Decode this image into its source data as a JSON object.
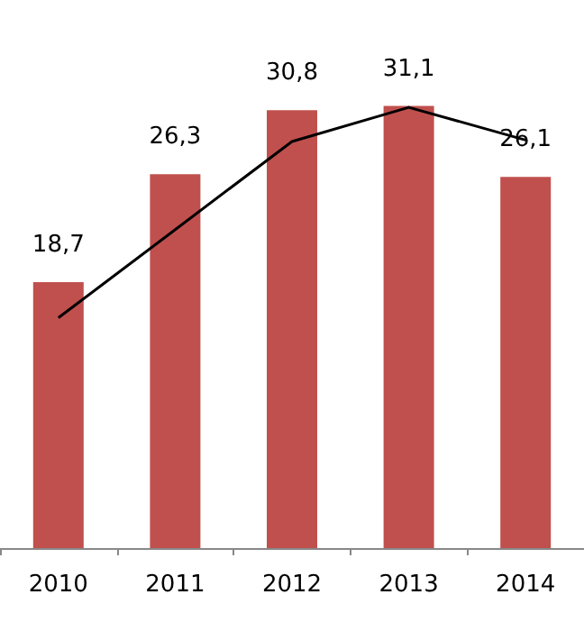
{
  "chart_data": {
    "type": "bar",
    "categories": [
      "2010",
      "2011",
      "2012",
      "2013",
      "2014"
    ],
    "series": [
      {
        "color": "#c0504d",
        "values": [
          18.7,
          26.3,
          30.8,
          31.1,
          26.1
        ],
        "value_labels": [
          "18,7",
          "26,3",
          "30,8",
          "31,1",
          "26,1"
        ]
      },
      {
        "type": "line",
        "color": "#000000",
        "values": [
          16.2,
          22.4,
          28.6,
          31.0,
          28.7
        ],
        "marker": "none",
        "line_style": "solid"
      }
    ],
    "tick_labels": "x",
    "grid": false
  }
}
